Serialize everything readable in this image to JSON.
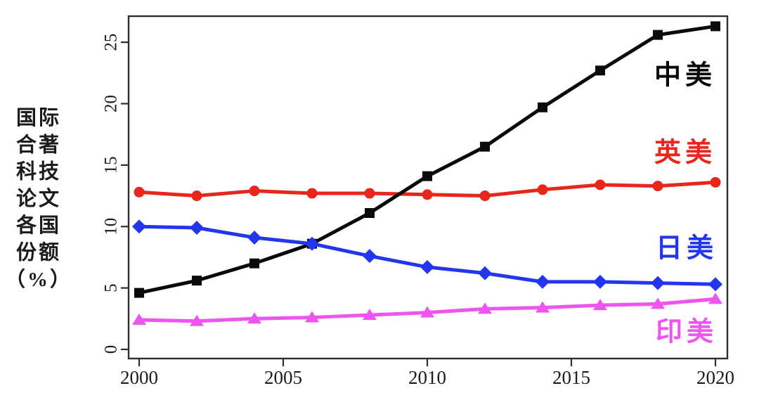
{
  "chart_data": {
    "type": "line",
    "title": "",
    "xlabel": "",
    "ylabel": "国际合著科技论文各国份额（%）",
    "ylabel_lines": [
      "国际",
      "合著",
      "科技",
      "论文",
      "各国",
      "份额",
      "（%）"
    ],
    "x": [
      2000,
      2002,
      2004,
      2006,
      2008,
      2010,
      2012,
      2014,
      2016,
      2018,
      2020
    ],
    "x_ticks": [
      2000,
      2005,
      2010,
      2015,
      2020
    ],
    "y_ticks": [
      0,
      5,
      10,
      15,
      20,
      25
    ],
    "xlim": [
      1999.6,
      2020.4
    ],
    "ylim": [
      0,
      27.1
    ],
    "grid": false,
    "frame": true,
    "legend_position": "inline-right-labels",
    "series": [
      {
        "name": "中美",
        "color": "#0a0a0a",
        "marker": "square",
        "z": 2,
        "label_x": 2018.95,
        "label_y": 22.3,
        "values": [
          4.6,
          5.6,
          7.0,
          8.6,
          11.1,
          14.1,
          16.5,
          19.7,
          22.7,
          25.6,
          26.3
        ]
      },
      {
        "name": "英美",
        "color": "#e8261b",
        "marker": "circle",
        "z": 1,
        "label_x": 2018.95,
        "label_y": 16.0,
        "values": [
          12.8,
          12.5,
          12.9,
          12.7,
          12.7,
          12.6,
          12.5,
          13.0,
          13.4,
          13.3,
          13.6
        ]
      },
      {
        "name": "日美",
        "color": "#2236ee",
        "marker": "diamond",
        "z": 3,
        "label_x": 2019.0,
        "label_y": 8.2,
        "values": [
          10.0,
          9.9,
          9.1,
          8.6,
          7.6,
          6.7,
          6.2,
          5.5,
          5.5,
          5.4,
          5.3
        ]
      },
      {
        "name": "印美",
        "color": "#ee54ee",
        "marker": "triangle",
        "z": 4,
        "label_x": 2019.0,
        "label_y": 1.4,
        "values": [
          2.4,
          2.3,
          2.5,
          2.6,
          2.8,
          3.0,
          3.3,
          3.4,
          3.6,
          3.7,
          4.1
        ]
      }
    ],
    "axis_color": "#2f2f2f",
    "tick_label_color": "#1c1c1c"
  }
}
